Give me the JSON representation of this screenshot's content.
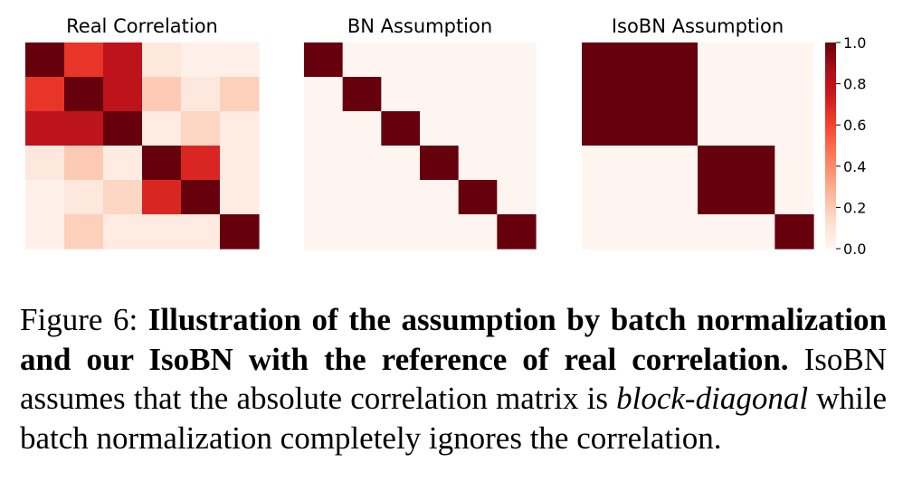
{
  "chart_data": [
    {
      "type": "heatmap",
      "title": "Real Correlation",
      "values": [
        [
          1.0,
          0.65,
          0.8,
          0.08,
          0.03,
          0.03
        ],
        [
          0.65,
          1.0,
          0.8,
          0.2,
          0.08,
          0.18
        ],
        [
          0.8,
          0.8,
          1.0,
          0.06,
          0.16,
          0.06
        ],
        [
          0.08,
          0.2,
          0.06,
          1.0,
          0.7,
          0.06
        ],
        [
          0.03,
          0.08,
          0.16,
          0.7,
          1.0,
          0.06
        ],
        [
          0.03,
          0.18,
          0.06,
          0.06,
          0.06,
          1.0
        ]
      ]
    },
    {
      "type": "heatmap",
      "title": "BN Assumption",
      "values": [
        [
          1,
          0,
          0,
          0,
          0,
          0
        ],
        [
          0,
          1,
          0,
          0,
          0,
          0
        ],
        [
          0,
          0,
          1,
          0,
          0,
          0
        ],
        [
          0,
          0,
          0,
          1,
          0,
          0
        ],
        [
          0,
          0,
          0,
          0,
          1,
          0
        ],
        [
          0,
          0,
          0,
          0,
          0,
          1
        ]
      ]
    },
    {
      "type": "heatmap",
      "title": "IsoBN Assumption",
      "values": [
        [
          1,
          1,
          1,
          0,
          0,
          0
        ],
        [
          1,
          1,
          1,
          0,
          0,
          0
        ],
        [
          1,
          1,
          1,
          0,
          0,
          0
        ],
        [
          0,
          0,
          0,
          1,
          1,
          0
        ],
        [
          0,
          0,
          0,
          1,
          1,
          0
        ],
        [
          0,
          0,
          0,
          0,
          0,
          1
        ]
      ]
    }
  ],
  "colorbar": {
    "vmin": 0.0,
    "vmax": 1.0,
    "ticks": [
      "0.0",
      "0.2",
      "0.4",
      "0.6",
      "0.8",
      "1.0"
    ],
    "colormap": "Reds",
    "low_color": "#fff5f0",
    "high_color": "#67000d"
  },
  "caption": {
    "prefix": "Figure 6: ",
    "bold": "Illustration of the assumption by batch normalization and our IsoBN with the reference of real correlation.",
    "text1": " IsoBN assumes that the absolute correlation matrix is ",
    "italic": "block-diagonal",
    "text2": " while batch normalization completely ignores the correlation."
  }
}
